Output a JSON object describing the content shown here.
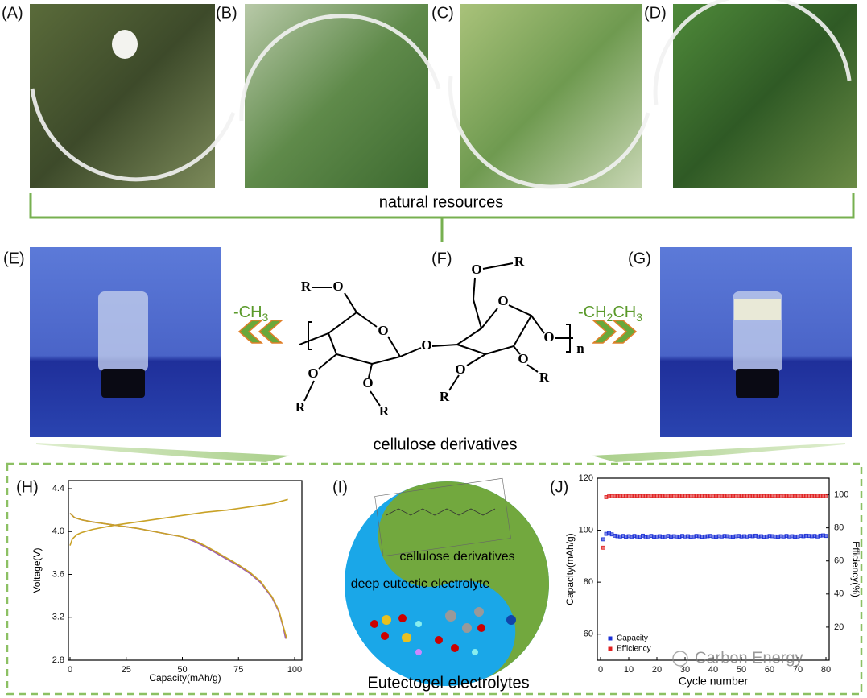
{
  "panel_labels": [
    "(A)",
    "(B)",
    "(C)",
    "(D)",
    "(E)",
    "(F)",
    "(G)",
    "(H)",
    "(I)",
    "(J)"
  ],
  "natural_resources": "natural resources",
  "cellulose_derivatives": "cellulose derivatives",
  "left_group": [
    "-CH",
    "3"
  ],
  "right_group": [
    "-CH",
    "2",
    "CH",
    "3"
  ],
  "structure_atoms": [
    "R",
    "O",
    "O",
    "O",
    "O",
    "R",
    "O",
    "R",
    "O",
    "R",
    "O",
    "O",
    "O",
    "R",
    "O",
    "R",
    "n"
  ],
  "yinyang": {
    "top": "cellulose derivatives",
    "middle": "deep eutectic electrolyte",
    "caption": "Eutectogel electrolytes"
  },
  "watermark": "Carbon Energy",
  "chart_data": [
    {
      "type": "line",
      "xlabel": "Capacity(mAh/g)",
      "ylabel": "Voltage(V)",
      "xlim": [
        0,
        100
      ],
      "xticks": [
        0,
        25,
        50,
        75,
        100
      ],
      "ylim": [
        2.8,
        4.4
      ],
      "yticks": [
        2.8,
        3.2,
        3.6,
        {
          "value": 4,
          "label": "4.0"
        },
        4.4
      ],
      "series": [
        {
          "color": "#c9a227",
          "x": [
            0,
            1,
            3,
            5,
            10,
            20,
            30,
            40,
            50,
            60,
            70,
            80,
            90,
            97
          ],
          "values": [
            3.87,
            3.93,
            3.97,
            3.99,
            4.02,
            4.06,
            4.09,
            4.12,
            4.15,
            4.18,
            4.2,
            4.23,
            4.26,
            4.3
          ]
        },
        {
          "color": "#9b59b6",
          "x": [
            0,
            2,
            5,
            10,
            20,
            30,
            40,
            50,
            55,
            60,
            65,
            70,
            75,
            80,
            85,
            90,
            93,
            95,
            96
          ],
          "values": [
            4.17,
            4.13,
            4.11,
            4.09,
            4.06,
            4.03,
            3.99,
            3.95,
            3.91,
            3.86,
            3.8,
            3.74,
            3.68,
            3.61,
            3.52,
            3.38,
            3.25,
            3.1,
            3.0
          ]
        },
        {
          "color": "#c9a227",
          "x": [
            0,
            2,
            5,
            10,
            20,
            30,
            40,
            50,
            55,
            60,
            65,
            70,
            75,
            80,
            85,
            90,
            93,
            95,
            96.5
          ],
          "values": [
            4.17,
            4.13,
            4.11,
            4.09,
            4.06,
            4.03,
            3.99,
            3.95,
            3.92,
            3.87,
            3.81,
            3.75,
            3.69,
            3.62,
            3.53,
            3.39,
            3.26,
            3.11,
            3.0
          ]
        }
      ]
    },
    {
      "type": "scatter",
      "xlabel": "Cycle number",
      "ylabel": "Capacity(mAh/g)",
      "y2label": "Efficiency(%)",
      "x": [
        1,
        2,
        3,
        4,
        5,
        6,
        7,
        8,
        9,
        10,
        11,
        12,
        13,
        14,
        15,
        16,
        17,
        18,
        19,
        20,
        21,
        22,
        23,
        24,
        25,
        26,
        27,
        28,
        29,
        30,
        31,
        32,
        33,
        34,
        35,
        36,
        37,
        38,
        39,
        40,
        41,
        42,
        43,
        44,
        45,
        46,
        47,
        48,
        49,
        50,
        51,
        52,
        53,
        54,
        55,
        56,
        57,
        58,
        59,
        60,
        61,
        62,
        63,
        64,
        65,
        66,
        67,
        68,
        69,
        70,
        71,
        72,
        73,
        74,
        75,
        76,
        77,
        78,
        79,
        80
      ],
      "xlim": [
        0,
        80
      ],
      "xticks": [
        0,
        10,
        20,
        30,
        40,
        50,
        60,
        70,
        80
      ],
      "ylim": [
        50,
        120
      ],
      "yticks": [
        60,
        80,
        100,
        120
      ],
      "y2lim": [
        0,
        110
      ],
      "y2ticks": [
        20,
        40,
        60,
        80,
        100
      ],
      "legend": "lower left",
      "series": [
        {
          "name": "Capacity",
          "color": "#1a2fd6",
          "values": [
            96.5,
            98.6,
            98.9,
            98.4,
            97.9,
            97.7,
            97.6,
            97.8,
            97.5,
            97.7,
            97.4,
            97.8,
            97.6,
            97.5,
            97.9,
            97.3,
            97.6,
            97.8,
            97.5,
            97.6,
            97.7,
            97.4,
            97.6,
            97.8,
            97.5,
            97.7,
            97.6,
            97.5,
            97.8,
            97.6,
            97.7,
            97.5,
            97.6,
            97.8,
            97.7,
            97.5,
            97.6,
            97.7,
            97.8,
            97.6,
            97.5,
            97.7,
            97.6,
            97.8,
            97.7,
            97.6,
            97.5,
            97.7,
            97.8,
            97.6,
            97.7,
            97.6,
            97.8,
            97.7,
            97.9,
            97.6,
            97.7,
            97.5,
            97.6,
            97.8,
            97.7,
            97.6,
            97.5,
            97.7,
            97.6,
            97.8,
            97.6,
            97.7,
            97.5,
            97.6,
            97.8,
            97.7,
            97.9,
            97.8,
            97.7,
            97.8,
            97.6,
            97.9,
            98.0,
            97.8
          ]
        },
        {
          "name": "Efficiency",
          "color": "#e02020",
          "axis": "y2",
          "values": [
            68.0,
            98.6,
            99.0,
            99.2,
            99.3,
            99.2,
            99.3,
            99.4,
            99.3,
            99.2,
            99.3,
            99.3,
            99.4,
            99.2,
            99.3,
            99.3,
            99.2,
            99.4,
            99.3,
            99.3,
            99.2,
            99.3,
            99.4,
            99.3,
            99.3,
            99.2,
            99.3,
            99.3,
            99.4,
            99.3,
            99.2,
            99.3,
            99.3,
            99.4,
            99.3,
            99.3,
            99.2,
            99.3,
            99.4,
            99.3,
            99.3,
            99.2,
            99.3,
            99.3,
            99.4,
            99.3,
            99.3,
            99.2,
            99.3,
            99.4,
            99.3,
            99.3,
            99.2,
            99.3,
            99.3,
            99.4,
            99.3,
            99.2,
            99.3,
            99.3,
            99.4,
            99.3,
            99.3,
            99.2,
            99.3,
            99.3,
            99.4,
            99.3,
            99.2,
            99.3,
            99.3,
            99.4,
            99.3,
            99.3,
            99.2,
            99.3,
            99.4,
            99.3,
            99.3,
            99.2
          ]
        }
      ]
    }
  ]
}
